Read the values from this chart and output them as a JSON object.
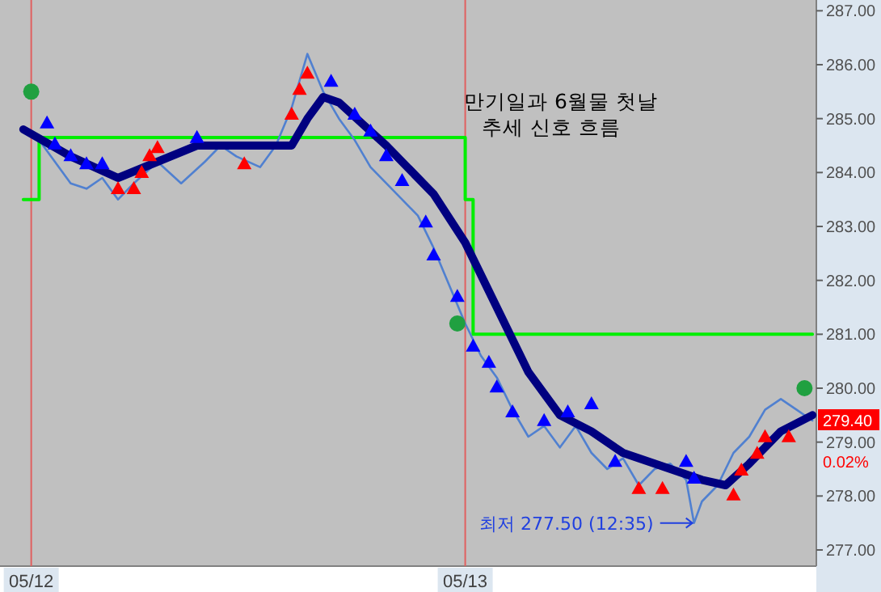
{
  "chart_data": {
    "type": "line",
    "annotations": [
      "만기일과 6월물 첫날\n추세 신호 흐름",
      "최저 277.50 (12:35)",
      "279.40",
      "0.02%"
    ],
    "categories": [
      null,
      "05/12",
      null,
      null,
      null,
      null,
      null,
      null,
      null,
      null,
      null,
      null,
      null,
      null,
      null,
      null,
      null,
      null,
      null,
      null,
      null,
      null,
      null,
      null,
      null,
      null,
      null,
      null,
      null,
      null,
      null,
      null,
      null,
      null,
      null,
      null,
      null,
      null,
      null,
      null,
      null,
      null,
      null,
      null,
      null,
      null,
      null,
      null,
      null,
      null,
      null,
      null,
      null,
      null,
      null,
      null,
      "05/13",
      null,
      null,
      null,
      null,
      null,
      null,
      null,
      null,
      null,
      null,
      null,
      null,
      null,
      null,
      null,
      null,
      null,
      null,
      null,
      null,
      null,
      null,
      null,
      null,
      null,
      null,
      null,
      null,
      null,
      null,
      null,
      null,
      null,
      null,
      null,
      null,
      null,
      null,
      null,
      null,
      null,
      null,
      null,
      null
    ],
    "ylim": [
      276.7,
      287.2
    ],
    "yticks": [
      {
        "value": 277,
        "label": "277.00"
      },
      {
        "value": 278,
        "label": "278.00"
      },
      {
        "value": 279,
        "label": "279.00"
      },
      {
        "value": 280,
        "label": "280.00"
      },
      {
        "value": 281,
        "label": "281.00"
      },
      {
        "value": 282,
        "label": "282.00"
      },
      {
        "value": 283,
        "label": "283.00"
      },
      {
        "value": 284,
        "label": "284.00"
      },
      {
        "value": 285,
        "label": "285.00"
      },
      {
        "value": 286,
        "label": "286.00"
      },
      {
        "value": 287,
        "label": "287.00"
      }
    ],
    "grid": false,
    "ref_lines": [
      {
        "axis": "x",
        "value": "05/12",
        "color": "#e06060"
      },
      {
        "axis": "x",
        "value": "05/13",
        "color": "#e06060"
      }
    ],
    "series": [
      {
        "color": "#5080d0",
        "values": [
          284.8,
          null,
          284.6,
          null,
          284.2,
          null,
          283.8,
          null,
          283.7,
          null,
          283.9,
          null,
          283.5,
          null,
          283.8,
          null,
          null,
          284.2,
          null,
          null,
          283.8,
          null,
          null,
          284.2,
          null,
          284.5,
          null,
          284.3,
          null,
          null,
          284.1,
          null,
          284.5,
          null,
          285.2,
          null,
          286.2,
          null,
          285.5,
          null,
          285.0,
          null,
          284.6,
          null,
          284.1,
          null,
          283.8,
          null,
          283.5,
          null,
          283.2,
          null,
          282.6,
          null,
          281.9,
          null,
          281.2,
          null,
          280.6,
          null,
          280.2,
          null,
          279.6,
          null,
          279.1,
          null,
          279.3,
          null,
          278.9,
          null,
          279.3,
          null,
          278.8,
          null,
          278.5,
          null,
          278.7,
          null,
          278.2,
          null,
          278.5,
          null,
          278.6,
          null,
          278.3,
          277.5,
          277.9,
          null,
          278.2,
          null,
          278.8,
          null,
          279.1,
          null,
          279.6,
          null,
          279.8,
          null,
          279.6,
          null,
          279.4
        ]
      },
      {
        "color": "#000080",
        "values": [
          284.8,
          null,
          null,
          null,
          null,
          null,
          284.3,
          null,
          null,
          null,
          null,
          null,
          283.9,
          null,
          null,
          null,
          null,
          284.2,
          null,
          null,
          null,
          null,
          284.5,
          null,
          null,
          null,
          null,
          null,
          284.5,
          null,
          null,
          null,
          null,
          null,
          284.5,
          null,
          285.0,
          null,
          285.4,
          null,
          285.3,
          null,
          null,
          284.9,
          null,
          null,
          284.5,
          null,
          null,
          null,
          null,
          null,
          283.6,
          null,
          null,
          null,
          282.7,
          null,
          null,
          null,
          281.5,
          null,
          null,
          null,
          280.3,
          null,
          null,
          null,
          279.5,
          null,
          null,
          null,
          279.2,
          null,
          null,
          null,
          278.8,
          null,
          null,
          null,
          278.6,
          null,
          null,
          null,
          null,
          null,
          278.3,
          null,
          null,
          278.2,
          null,
          null,
          278.6,
          null,
          null,
          null,
          279.2,
          null,
          null,
          null,
          279.5
        ]
      },
      {
        "type": "step",
        "color": "#00ee00",
        "values": [
          283.5,
          null,
          284.65,
          null,
          null,
          null,
          null,
          null,
          null,
          null,
          null,
          null,
          null,
          null,
          null,
          null,
          null,
          null,
          null,
          null,
          null,
          null,
          null,
          null,
          null,
          null,
          null,
          null,
          null,
          null,
          null,
          null,
          null,
          null,
          null,
          null,
          null,
          null,
          null,
          null,
          null,
          null,
          null,
          null,
          null,
          null,
          null,
          null,
          null,
          null,
          null,
          null,
          null,
          null,
          null,
          null,
          283.5,
          281.0,
          null,
          null,
          null,
          null,
          null,
          null,
          null,
          null,
          null,
          null,
          null,
          null,
          null,
          null,
          null,
          null,
          null,
          null,
          null,
          null,
          null,
          null,
          null,
          null,
          null,
          null,
          null,
          null,
          null,
          null,
          null,
          null,
          null,
          null,
          null,
          null,
          null,
          null,
          null,
          null,
          null,
          null,
          281.0
        ]
      },
      {
        "type": "scatter",
        "marker": "triangle",
        "color": "#0000ff",
        "values": [
          null,
          null,
          null,
          284.91,
          284.52,
          null,
          284.3,
          null,
          284.15,
          null,
          284.15,
          null,
          null,
          null,
          null,
          null,
          null,
          null,
          null,
          null,
          null,
          null,
          284.64,
          null,
          null,
          null,
          null,
          null,
          null,
          null,
          null,
          null,
          null,
          null,
          null,
          null,
          null,
          null,
          null,
          285.68,
          null,
          null,
          285.07,
          null,
          284.76,
          null,
          284.3,
          null,
          283.84,
          null,
          null,
          283.07,
          282.46,
          null,
          null,
          281.69,
          null,
          280.77,
          null,
          280.47,
          280.01,
          null,
          279.55,
          null,
          null,
          null,
          279.39,
          null,
          null,
          279.55,
          null,
          null,
          279.7,
          null,
          null,
          278.63,
          null,
          null,
          null,
          null,
          null,
          null,
          null,
          null,
          278.63,
          278.32,
          null,
          null,
          null,
          null,
          null,
          null,
          null,
          null,
          null,
          null,
          null,
          null,
          null,
          null,
          null
        ]
      },
      {
        "type": "scatter",
        "marker": "triangle",
        "color": "#ff0000",
        "values": [
          null,
          null,
          null,
          null,
          null,
          null,
          null,
          null,
          null,
          null,
          null,
          null,
          283.69,
          null,
          283.69,
          283.99,
          284.3,
          284.45,
          null,
          null,
          null,
          null,
          null,
          null,
          null,
          null,
          null,
          null,
          284.15,
          null,
          null,
          null,
          null,
          null,
          285.07,
          285.53,
          285.83,
          null,
          null,
          null,
          null,
          null,
          null,
          null,
          null,
          null,
          null,
          null,
          null,
          null,
          null,
          null,
          null,
          null,
          null,
          null,
          null,
          null,
          null,
          null,
          null,
          null,
          null,
          null,
          null,
          null,
          null,
          null,
          null,
          null,
          null,
          null,
          null,
          null,
          null,
          null,
          null,
          null,
          278.13,
          null,
          null,
          278.13,
          null,
          null,
          null,
          null,
          null,
          null,
          null,
          null,
          278.01,
          278.47,
          null,
          278.78,
          279.09,
          null,
          null,
          279.09,
          null,
          null,
          null
        ]
      },
      {
        "type": "scatter",
        "marker": "circle",
        "color": "#20a040",
        "values": [
          null,
          285.5,
          null,
          null,
          null,
          null,
          null,
          null,
          null,
          null,
          null,
          null,
          null,
          null,
          null,
          null,
          null,
          null,
          null,
          null,
          null,
          null,
          null,
          null,
          null,
          null,
          null,
          null,
          null,
          null,
          null,
          null,
          null,
          null,
          null,
          null,
          null,
          null,
          null,
          null,
          null,
          null,
          null,
          null,
          null,
          null,
          null,
          null,
          null,
          null,
          null,
          null,
          null,
          null,
          null,
          281.2,
          null,
          null,
          null,
          null,
          null,
          null,
          null,
          null,
          null,
          null,
          null,
          null,
          null,
          null,
          null,
          null,
          null,
          null,
          null,
          null,
          null,
          null,
          null,
          null,
          null,
          null,
          null,
          null,
          null,
          null,
          null,
          null,
          null,
          null,
          null,
          null,
          null,
          null,
          null,
          null,
          null,
          null,
          null,
          280.0,
          null
        ]
      }
    ]
  }
}
